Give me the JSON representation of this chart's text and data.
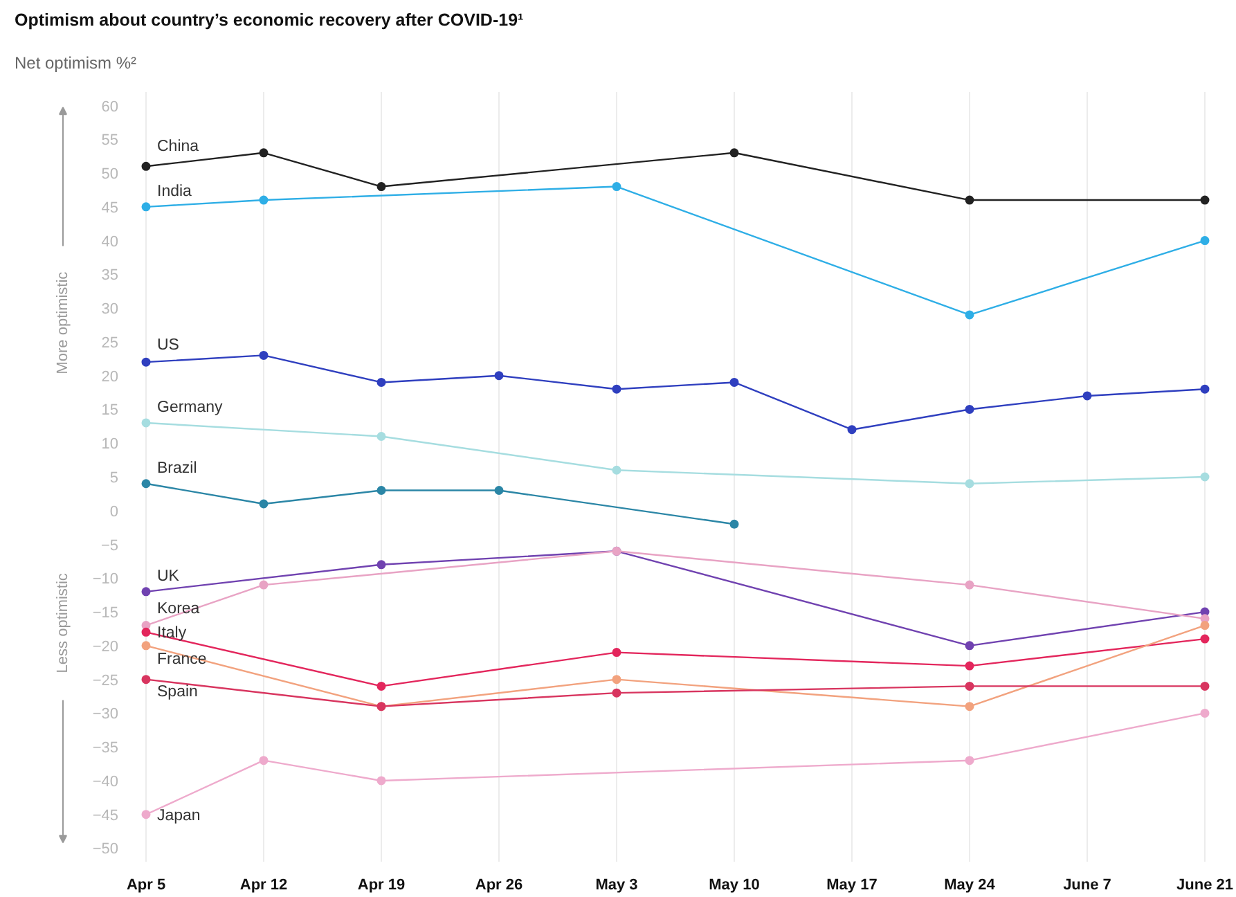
{
  "chart_data": {
    "type": "line",
    "title": "Optimism about country’s economic recovery after COVID-19¹",
    "subtitle": "Net optimism %²",
    "categories": [
      "Apr 5",
      "Apr 12",
      "Apr 19",
      "Apr 26",
      "May 3",
      "May 10",
      "May 17",
      "May 24",
      "June 7",
      "June 21"
    ],
    "ylim": [
      -52,
      62
    ],
    "yticks": [
      -50,
      -45,
      -40,
      -35,
      -30,
      -25,
      -20,
      -15,
      -10,
      -5,
      0,
      5,
      10,
      15,
      20,
      25,
      30,
      35,
      40,
      45,
      50,
      55,
      60
    ],
    "grid": "x",
    "marker": "circle",
    "line_style": "solid",
    "annotations": [
      "More optimistic",
      "Less optimistic"
    ],
    "series": [
      {
        "name": "China",
        "color": "#222222",
        "values": [
          51,
          53,
          48,
          null,
          null,
          53,
          null,
          46,
          null,
          46
        ]
      },
      {
        "name": "India",
        "color": "#2eaee6",
        "values": [
          45,
          46,
          null,
          null,
          48,
          null,
          null,
          29,
          null,
          40
        ]
      },
      {
        "name": "US",
        "color": "#2f3fbf",
        "values": [
          22,
          23,
          19,
          20,
          18,
          19,
          12,
          15,
          17,
          18
        ]
      },
      {
        "name": "Germany",
        "color": "#a6dde0",
        "values": [
          13,
          null,
          11,
          null,
          6,
          null,
          null,
          4,
          null,
          5
        ]
      },
      {
        "name": "Brazil",
        "color": "#2b86a6",
        "values": [
          4,
          1,
          3,
          3,
          null,
          -2,
          null,
          null,
          null,
          null
        ]
      },
      {
        "name": "UK",
        "color": "#7042b0",
        "values": [
          -12,
          null,
          -8,
          null,
          -6,
          null,
          null,
          -20,
          null,
          -15
        ]
      },
      {
        "name": "Korea",
        "color": "#e8a3c4",
        "values": [
          -17,
          -11,
          null,
          null,
          -6,
          null,
          null,
          -11,
          null,
          -16
        ]
      },
      {
        "name": "Italy",
        "color": "#e3265c",
        "values": [
          -18,
          null,
          -26,
          null,
          -21,
          null,
          null,
          -23,
          null,
          -19
        ]
      },
      {
        "name": "France",
        "color": "#f2a27e",
        "values": [
          -20,
          null,
          -29,
          null,
          -25,
          null,
          null,
          -29,
          null,
          -17
        ]
      },
      {
        "name": "Spain",
        "color": "#d8355f",
        "values": [
          -25,
          null,
          -29,
          null,
          -27,
          null,
          null,
          -26,
          null,
          -26
        ]
      },
      {
        "name": "Japan",
        "color": "#eeaacc",
        "values": [
          -45,
          -37,
          -40,
          null,
          null,
          null,
          null,
          -37,
          null,
          -30
        ]
      }
    ]
  }
}
